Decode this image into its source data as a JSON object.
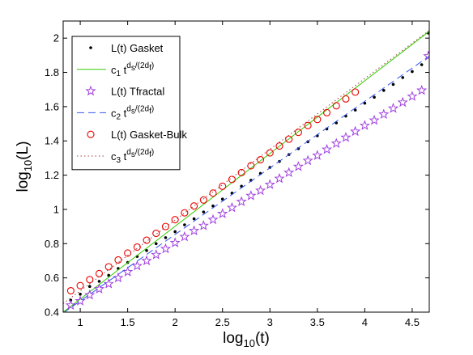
{
  "chart_data": {
    "type": "line",
    "xlabel": "log",
    "xlabel_sub": "10",
    "xlabel_tail": "(t)",
    "ylabel": "log",
    "ylabel_sub": "10",
    "ylabel_tail": "(L)",
    "xlim": [
      0.82,
      4.68
    ],
    "ylim": [
      0.4,
      2.1
    ],
    "xticks": [
      1,
      1.5,
      2,
      2.5,
      3,
      3.5,
      4,
      4.5
    ],
    "xtick_labels": [
      "1",
      "1.5",
      "2",
      "2.5",
      "3",
      "3.5",
      "4",
      "4.5"
    ],
    "yticks": [
      0.4,
      0.6,
      0.8,
      1,
      1.2,
      1.4,
      1.6,
      1.8,
      2
    ],
    "ytick_labels": [
      "0.4",
      "0.6",
      "0.8",
      "1",
      "1.2",
      "1.4",
      "1.6",
      "1.8",
      "2"
    ],
    "grid": false,
    "legend_position": "top-left",
    "series": [
      {
        "name": "L(t) Gasket",
        "style": "markers",
        "marker": "dot",
        "color": "#000000",
        "x": [
          0.9,
          1.0,
          1.1,
          1.2,
          1.3,
          1.4,
          1.5,
          1.6,
          1.7,
          1.8,
          1.9,
          2.0,
          2.1,
          2.2,
          2.3,
          2.4,
          2.5,
          2.6,
          2.7,
          2.8,
          2.9,
          3.0,
          3.1,
          3.2,
          3.3,
          3.4,
          3.5,
          3.6,
          3.7,
          3.8,
          3.9,
          4.0,
          4.1,
          4.2,
          4.3,
          4.4,
          4.5,
          4.6,
          4.67
        ],
        "y": [
          0.47,
          0.505,
          0.55,
          0.58,
          0.615,
          0.655,
          0.69,
          0.725,
          0.76,
          0.8,
          0.835,
          0.87,
          0.91,
          0.945,
          0.985,
          1.02,
          1.06,
          1.095,
          1.135,
          1.17,
          1.21,
          1.245,
          1.28,
          1.32,
          1.355,
          1.395,
          1.43,
          1.47,
          1.505,
          1.545,
          1.58,
          1.62,
          1.655,
          1.695,
          1.73,
          1.77,
          1.805,
          1.845,
          2.03
        ]
      },
      {
        "name": "c1 t^(ds/(2df))",
        "legend_base": "c",
        "legend_sub": "1",
        "legend_t": "t",
        "legend_sup_d": "d",
        "legend_sup_s": "s",
        "legend_sup_rest": "/(2d",
        "legend_sup_f": "f",
        "legend_sup_close": ")",
        "style": "line",
        "dash": "solid",
        "color": "#33cc00",
        "x": [
          0.82,
          4.68
        ],
        "y": [
          0.4,
          2.04
        ]
      },
      {
        "name": "L(t) Tfractal",
        "style": "markers",
        "marker": "star",
        "color": "#a040e0",
        "x": [
          0.9,
          1.0,
          1.1,
          1.2,
          1.3,
          1.4,
          1.5,
          1.6,
          1.7,
          1.8,
          1.9,
          2.0,
          2.1,
          2.2,
          2.3,
          2.4,
          2.5,
          2.6,
          2.7,
          2.8,
          2.9,
          3.0,
          3.1,
          3.2,
          3.3,
          3.4,
          3.5,
          3.6,
          3.7,
          3.8,
          3.9,
          4.0,
          4.1,
          4.2,
          4.3,
          4.4,
          4.5,
          4.6,
          4.67
        ],
        "y": [
          0.44,
          0.465,
          0.5,
          0.535,
          0.565,
          0.6,
          0.635,
          0.67,
          0.7,
          0.735,
          0.77,
          0.805,
          0.84,
          0.875,
          0.905,
          0.94,
          0.975,
          1.01,
          1.045,
          1.08,
          1.11,
          1.145,
          1.18,
          1.215,
          1.25,
          1.285,
          1.315,
          1.35,
          1.385,
          1.42,
          1.455,
          1.49,
          1.52,
          1.555,
          1.59,
          1.625,
          1.66,
          1.695,
          1.895
        ]
      },
      {
        "name": "c2 t^(ds/(2df))",
        "legend_base": "c",
        "legend_sub": "2",
        "legend_t": "t",
        "legend_sup_d": "d",
        "legend_sup_s": "s",
        "legend_sup_rest": "/(2d",
        "legend_sup_f": "f",
        "legend_sup_close": ")",
        "style": "line",
        "dash": "dashed",
        "color": "#3355ee",
        "x": [
          0.82,
          4.68
        ],
        "y": [
          0.395,
          1.895
        ]
      },
      {
        "name": "L(t) Gasket-Bulk",
        "style": "markers",
        "marker": "circle",
        "color": "#ee0000",
        "x": [
          0.9,
          1.0,
          1.1,
          1.2,
          1.3,
          1.4,
          1.5,
          1.6,
          1.7,
          1.8,
          1.9,
          2.0,
          2.1,
          2.2,
          2.3,
          2.4,
          2.5,
          2.6,
          2.7,
          2.8,
          2.9,
          3.0,
          3.1,
          3.2,
          3.3,
          3.4,
          3.5,
          3.6,
          3.7,
          3.8,
          3.9
        ],
        "y": [
          0.525,
          0.555,
          0.59,
          0.625,
          0.665,
          0.705,
          0.745,
          0.78,
          0.82,
          0.86,
          0.9,
          0.94,
          0.98,
          1.02,
          1.055,
          1.095,
          1.135,
          1.175,
          1.215,
          1.255,
          1.29,
          1.33,
          1.37,
          1.41,
          1.45,
          1.49,
          1.525,
          1.565,
          1.605,
          1.645,
          1.685
        ]
      },
      {
        "name": "c3 t^(ds/(2df))",
        "legend_base": "c",
        "legend_sub": "3",
        "legend_t": "t",
        "legend_sup_d": "d",
        "legend_sup_s": "s",
        "legend_sup_rest": "/(2d",
        "legend_sup_f": "f",
        "legend_sup_close": ")",
        "style": "line",
        "dash": "dotted",
        "color": "#a04040",
        "x": [
          0.82,
          4.68
        ],
        "y": [
          0.45,
          2.045
        ]
      }
    ]
  }
}
